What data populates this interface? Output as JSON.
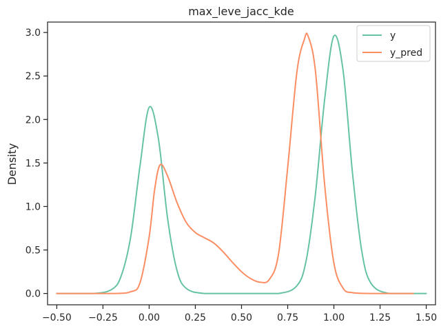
{
  "chart_data": {
    "type": "line",
    "title": "max_leve_jacc_kde",
    "xlabel": "",
    "ylabel": "Density",
    "xlim": [
      -0.55,
      1.55
    ],
    "ylim": [
      -0.13,
      3.12
    ],
    "x_ticks": [
      -0.5,
      -0.25,
      0.0,
      0.25,
      0.5,
      0.75,
      1.0,
      1.25,
      1.5
    ],
    "x_tick_labels": [
      "−0.50",
      "−0.25",
      "0.00",
      "0.25",
      "0.50",
      "0.75",
      "1.00",
      "1.25",
      "1.50"
    ],
    "y_ticks": [
      0.0,
      0.5,
      1.0,
      1.5,
      2.0,
      2.5,
      3.0
    ],
    "y_tick_labels": [
      "0.0",
      "0.5",
      "1.0",
      "1.5",
      "2.0",
      "2.5",
      "3.0"
    ],
    "grid": false,
    "legend_position": "top-right",
    "series": [
      {
        "name": "y",
        "color": "#66c2a5",
        "x": [
          -0.5,
          -0.3,
          -0.2,
          -0.15,
          -0.1,
          -0.05,
          0.0,
          0.05,
          0.1,
          0.15,
          0.2,
          0.3,
          0.5,
          0.7,
          0.8,
          0.85,
          0.9,
          0.95,
          1.0,
          1.05,
          1.1,
          1.15,
          1.2,
          1.3,
          1.5
        ],
        "values": [
          0.0,
          0.0,
          0.05,
          0.21,
          0.65,
          1.46,
          2.14,
          1.78,
          0.86,
          0.27,
          0.06,
          0.0,
          0.0,
          0.0,
          0.09,
          0.38,
          1.14,
          2.23,
          2.96,
          2.56,
          1.4,
          0.5,
          0.12,
          0.0,
          0.0
        ]
      },
      {
        "name": "y_pred",
        "color": "#fc8d62",
        "x": [
          -0.5,
          -0.2,
          -0.1,
          -0.05,
          0.0,
          0.03,
          0.06,
          0.1,
          0.15,
          0.2,
          0.25,
          0.3,
          0.35,
          0.4,
          0.45,
          0.5,
          0.55,
          0.6,
          0.65,
          0.7,
          0.75,
          0.8,
          0.84,
          0.86,
          0.9,
          0.95,
          1.0,
          1.05,
          1.1,
          1.2,
          1.3,
          1.43
        ],
        "values": [
          0.0,
          0.0,
          0.02,
          0.12,
          0.65,
          1.2,
          1.48,
          1.35,
          1.05,
          0.82,
          0.7,
          0.64,
          0.58,
          0.48,
          0.36,
          0.25,
          0.17,
          0.13,
          0.16,
          0.45,
          1.45,
          2.55,
          2.92,
          2.96,
          2.56,
          1.25,
          0.35,
          0.06,
          0.01,
          0.0,
          0.0,
          0.0
        ]
      }
    ]
  }
}
